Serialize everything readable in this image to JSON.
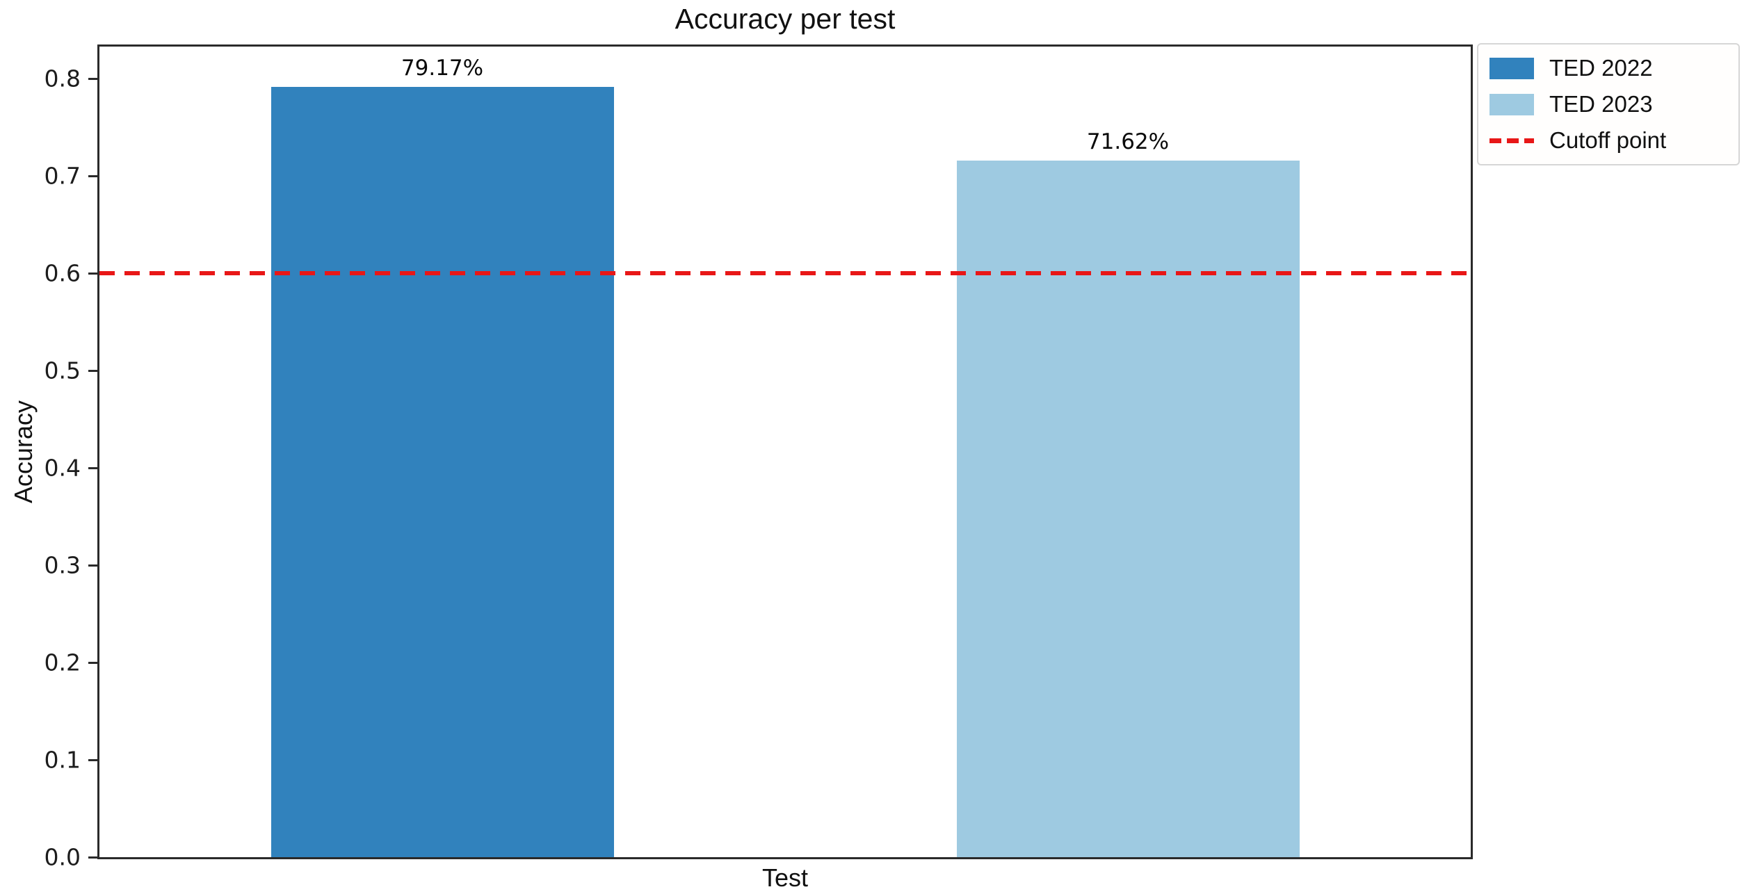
{
  "chart_data": {
    "type": "bar",
    "title": "Accuracy per test",
    "xlabel": "Test",
    "ylabel": "Accuracy",
    "categories": [
      "TED 2022",
      "TED 2023"
    ],
    "values": [
      0.7917,
      0.7162
    ],
    "bar_labels": [
      "79.17%",
      "71.62%"
    ],
    "bar_colors": [
      "#3182bd",
      "#9ecae1"
    ],
    "bar_centers_pct": [
      25,
      75
    ],
    "bar_width_pct": 25,
    "cutoff": {
      "label": "Cutoff point",
      "value": 0.6,
      "color": "#e81717",
      "style": "dashed"
    },
    "ylim": [
      0,
      0.833
    ],
    "yticks": [
      "0.0",
      "0.1",
      "0.2",
      "0.3",
      "0.4",
      "0.5",
      "0.6",
      "0.7",
      "0.8"
    ],
    "grid": false,
    "legend": {
      "position": "outside-top-right",
      "entries": [
        {
          "label": "TED 2022",
          "swatch": "patch",
          "color": "#3182bd"
        },
        {
          "label": "TED 2023",
          "swatch": "patch",
          "color": "#9ecae1"
        },
        {
          "label": "Cutoff point",
          "swatch": "dashed-line",
          "color": "#e81717"
        }
      ]
    }
  }
}
